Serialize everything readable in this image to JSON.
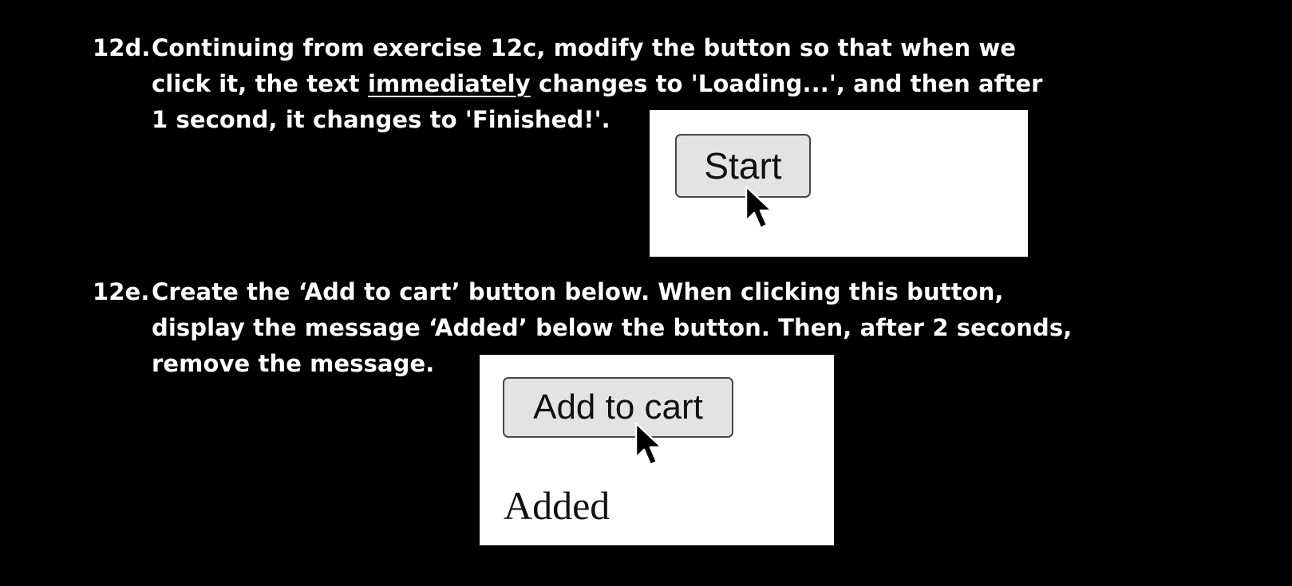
{
  "exercises": [
    {
      "number": "12d.",
      "lines": [
        "Continuing from exercise 12c, modify the button so that when we",
        "click it, the text",
        "immediately",
        "changes to 'Loading...', and then after",
        "1 second, it changes to 'Finished!'."
      ],
      "demo": {
        "button_label": "Start",
        "cursor_icon": "arrow-cursor-icon"
      }
    },
    {
      "number": "12e.",
      "lines": [
        "Create the ‘Add to cart’ button below. When clicking this button,",
        "display the message ‘Added’ below the button. Then, after 2 seconds,",
        "remove the message."
      ],
      "demo": {
        "button_label": "Add to cart",
        "message": "Added",
        "cursor_icon": "arrow-cursor-icon"
      }
    }
  ],
  "colors": {
    "background": "#000000",
    "text": "#ffffff",
    "panel": "#ffffff",
    "button_fill": "#e3e3e3",
    "button_border": "#474747"
  }
}
